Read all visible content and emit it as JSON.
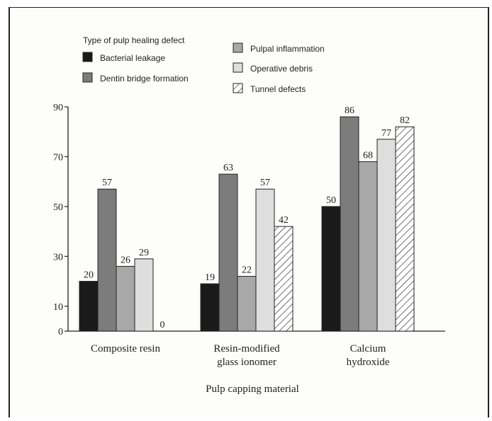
{
  "chart_data": {
    "type": "bar",
    "legend_title": "Type of pulp healing defect",
    "legend_placement": "top-left",
    "categories": [
      [
        "Composite resin"
      ],
      [
        "Resin-modified",
        "glass ionomer"
      ],
      [
        "Calcium",
        "hydroxide"
      ]
    ],
    "xlabel": "Pulp capping material",
    "ylabel": "",
    "ylim": [
      0,
      90
    ],
    "yticks": [
      0,
      10,
      30,
      50,
      70,
      90
    ],
    "grid": false,
    "series": [
      {
        "name": "Bacterial leakage",
        "pattern": "solid",
        "color": "#1a1a1a",
        "values": [
          20,
          19,
          50
        ]
      },
      {
        "name": "Dentin bridge formation",
        "pattern": "solid",
        "color": "#7c7c7c",
        "values": [
          57,
          63,
          86
        ]
      },
      {
        "name": "Pulpal inflammation",
        "pattern": "solid",
        "color": "#a8a8a8",
        "values": [
          26,
          22,
          68
        ]
      },
      {
        "name": "Operative debris",
        "pattern": "solid",
        "color": "#dedede",
        "values": [
          29,
          57,
          77
        ]
      },
      {
        "name": "Tunnel defects",
        "pattern": "hatch",
        "color": "#ffffff",
        "values": [
          0,
          42,
          82
        ]
      }
    ]
  }
}
